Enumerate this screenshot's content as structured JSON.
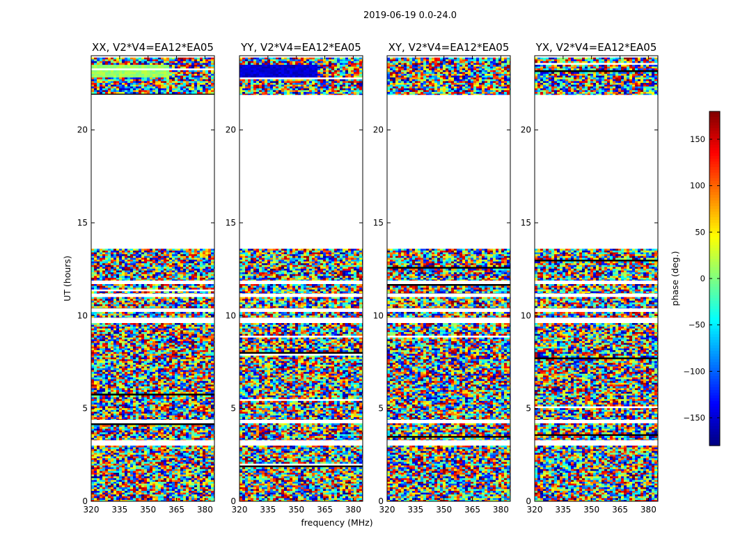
{
  "figure": {
    "suptitle": "2019-06-19 0.0-24.0"
  },
  "chart_data": {
    "type": "heatmap",
    "xlabel": "frequency (MHz)",
    "ylabel": "UT (hours)",
    "xlim": [
      320,
      385
    ],
    "ylim": [
      0,
      24
    ],
    "xticks": [
      320,
      335,
      350,
      365,
      380
    ],
    "yticks": [
      0,
      5,
      10,
      15,
      20
    ],
    "colorbar": {
      "label": "phase (deg.)",
      "range": [
        -180,
        180
      ],
      "ticks": [
        150,
        100,
        50,
        0,
        -50,
        -100,
        -150
      ],
      "tick_labels": [
        "150",
        "100",
        "50",
        "0",
        "−50",
        "−100",
        "−150"
      ],
      "colormap": "jet"
    },
    "panels": [
      {
        "title": "XX, V2*V4=EA12*EA05",
        "pol": "XX"
      },
      {
        "title": "YY, V2*V4=EA12*EA05",
        "pol": "YY"
      },
      {
        "title": "XY, V2*V4=EA12*EA05",
        "pol": "XY"
      },
      {
        "title": "YX, V2*V4=EA12*EA05",
        "pol": "YX"
      }
    ],
    "data_bands_hours": [
      [
        0,
        3.0
      ],
      [
        3.3,
        4.2
      ],
      [
        4.4,
        9.6
      ],
      [
        9.9,
        10.2
      ],
      [
        10.4,
        11.0
      ],
      [
        11.2,
        11.7
      ],
      [
        11.9,
        13.6
      ],
      [
        21.9,
        23.9
      ]
    ],
    "flagged_bands_hours": [
      [
        3.0,
        3.3
      ],
      [
        4.2,
        4.4
      ],
      [
        9.6,
        9.9
      ],
      [
        10.2,
        10.4
      ],
      [
        11.0,
        11.2
      ],
      [
        11.7,
        11.9
      ],
      [
        13.6,
        21.9
      ]
    ],
    "coherent_phase_deg": {
      "XX": 10,
      "YY": -150,
      "XY": null,
      "YX": null
    }
  }
}
